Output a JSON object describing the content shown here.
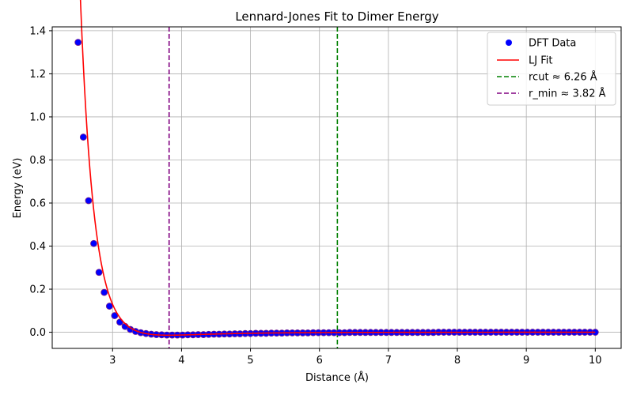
{
  "chart_data": {
    "type": "scatter",
    "title": "Lennard-Jones Fit to Dimer Energy",
    "xlabel": "Distance (Å)",
    "ylabel": "Energy (eV)",
    "xlim": [
      2.125,
      10.375
    ],
    "ylim": [
      -0.075,
      1.418
    ],
    "xticks": [
      3,
      4,
      5,
      6,
      7,
      8,
      9,
      10
    ],
    "yticks": [
      0.0,
      0.2,
      0.4,
      0.6,
      0.8,
      1.0,
      1.2,
      1.4
    ],
    "ytick_labels": [
      "0.0",
      "0.2",
      "0.4",
      "0.6",
      "0.8",
      "1.0",
      "1.2",
      "1.4"
    ],
    "grid": true,
    "legend_position": "top-right",
    "lj_fit": {
      "epsilon": 0.0137,
      "sigma": 3.4,
      "r_start": 2.5,
      "r_end": 10.0
    },
    "series": [
      {
        "name": "DFT Data",
        "style": "markers",
        "color": "#0000ff",
        "edge_color": "#7a1f8c",
        "x": [
          2.5,
          2.576,
          2.652,
          2.727,
          2.803,
          2.879,
          2.955,
          3.03,
          3.106,
          3.182,
          3.258,
          3.333,
          3.409,
          3.485,
          3.561,
          3.636,
          3.712,
          3.788,
          3.864,
          3.939,
          4.015,
          4.091,
          4.167,
          4.242,
          4.318,
          4.394,
          4.47,
          4.545,
          4.621,
          4.697,
          4.773,
          4.848,
          4.924,
          5.0,
          5.076,
          5.152,
          5.227,
          5.303,
          5.379,
          5.455,
          5.53,
          5.606,
          5.682,
          5.758,
          5.833,
          5.909,
          5.985,
          6.061,
          6.136,
          6.212,
          6.288,
          6.364,
          6.439,
          6.515,
          6.591,
          6.667,
          6.742,
          6.818,
          6.894,
          6.97,
          7.045,
          7.121,
          7.197,
          7.273,
          7.348,
          7.424,
          7.5,
          7.576,
          7.652,
          7.727,
          7.803,
          7.879,
          7.955,
          8.03,
          8.106,
          8.182,
          8.258,
          8.333,
          8.409,
          8.485,
          8.561,
          8.636,
          8.712,
          8.788,
          8.864,
          8.939,
          9.015,
          9.091,
          9.167,
          9.242,
          9.318,
          9.394,
          9.47,
          9.545,
          9.621,
          9.697,
          9.773,
          9.848,
          9.924,
          10.0
        ],
        "y": [
          1.346,
          0.906,
          0.611,
          0.412,
          0.278,
          0.185,
          0.121,
          0.077,
          0.047,
          0.027,
          0.013,
          0.004,
          -0.002,
          -0.006,
          -0.009,
          -0.011,
          -0.012,
          -0.013,
          -0.013,
          -0.013,
          -0.013,
          -0.012,
          -0.012,
          -0.011,
          -0.011,
          -0.01,
          -0.009,
          -0.009,
          -0.008,
          -0.008,
          -0.007,
          -0.007,
          -0.006,
          -0.006,
          -0.005,
          -0.005,
          -0.005,
          -0.004,
          -0.004,
          -0.004,
          -0.003,
          -0.003,
          -0.003,
          -0.003,
          -0.003,
          -0.002,
          -0.002,
          -0.002,
          -0.002,
          -0.002,
          -0.002,
          -0.002,
          -0.001,
          -0.001,
          -0.001,
          -0.001,
          -0.001,
          -0.001,
          -0.001,
          -0.001,
          -0.001,
          -0.001,
          -0.001,
          -0.001,
          -0.001,
          -0.001,
          -0.001,
          -0.001,
          -0.001,
          0.0,
          0.0,
          0.0,
          0.0,
          0.0,
          0.0,
          0.0,
          0.0,
          0.0,
          0.0,
          0.0,
          0.0,
          0.0,
          0.0,
          0.0,
          0.0,
          0.0,
          0.0,
          0.0,
          0.0,
          0.0,
          0.0,
          0.0,
          0.0,
          0.0,
          0.0,
          0.0,
          0.0,
          0.0,
          0.0,
          0.0
        ]
      },
      {
        "name": "LJ Fit",
        "style": "line",
        "color": "#ff0000"
      },
      {
        "name": "rcut ≈ 6.26 Å",
        "style": "vline-dashed",
        "color": "#008000",
        "x": 6.26
      },
      {
        "name": "r_min ≈ 3.82 Å",
        "style": "vline-dashed",
        "color": "#800080",
        "x": 3.82
      }
    ]
  }
}
